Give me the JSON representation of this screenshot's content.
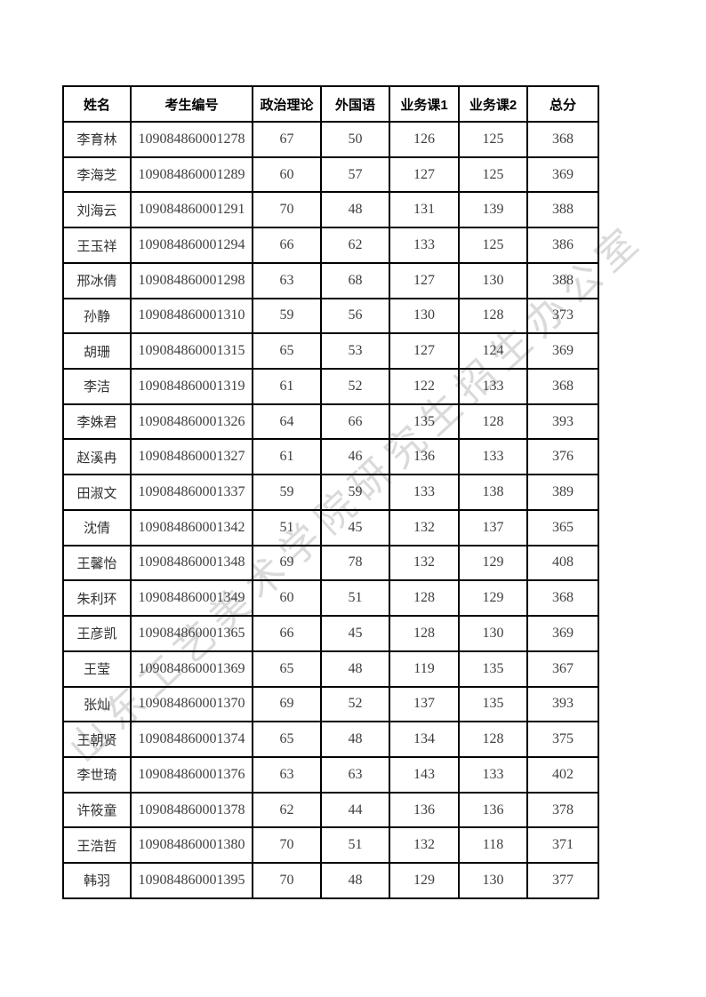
{
  "watermark": {
    "text": "山东工艺美术学院研究生招生办公室",
    "color": "#9e9e9e"
  },
  "table": {
    "headers": [
      "姓名",
      "考生编号",
      "政治理论",
      "外国语",
      "业务课1",
      "业务课2",
      "总分"
    ],
    "rows": [
      [
        "李育林",
        "109084860001278",
        "67",
        "50",
        "126",
        "125",
        "368"
      ],
      [
        "李海芝",
        "109084860001289",
        "60",
        "57",
        "127",
        "125",
        "369"
      ],
      [
        "刘海云",
        "109084860001291",
        "70",
        "48",
        "131",
        "139",
        "388"
      ],
      [
        "王玉祥",
        "109084860001294",
        "66",
        "62",
        "133",
        "125",
        "386"
      ],
      [
        "邢冰倩",
        "109084860001298",
        "63",
        "68",
        "127",
        "130",
        "388"
      ],
      [
        "孙静",
        "109084860001310",
        "59",
        "56",
        "130",
        "128",
        "373"
      ],
      [
        "胡珊",
        "109084860001315",
        "65",
        "53",
        "127",
        "124",
        "369"
      ],
      [
        "李洁",
        "109084860001319",
        "61",
        "52",
        "122",
        "133",
        "368"
      ],
      [
        "李姝君",
        "109084860001326",
        "64",
        "66",
        "135",
        "128",
        "393"
      ],
      [
        "赵溪冉",
        "109084860001327",
        "61",
        "46",
        "136",
        "133",
        "376"
      ],
      [
        "田淑文",
        "109084860001337",
        "59",
        "59",
        "133",
        "138",
        "389"
      ],
      [
        "沈倩",
        "109084860001342",
        "51",
        "45",
        "132",
        "137",
        "365"
      ],
      [
        "王馨怡",
        "109084860001348",
        "69",
        "78",
        "132",
        "129",
        "408"
      ],
      [
        "朱利环",
        "109084860001349",
        "60",
        "51",
        "128",
        "129",
        "368"
      ],
      [
        "王彦凯",
        "109084860001365",
        "66",
        "45",
        "128",
        "130",
        "369"
      ],
      [
        "王莹",
        "109084860001369",
        "65",
        "48",
        "119",
        "135",
        "367"
      ],
      [
        "张灿",
        "109084860001370",
        "69",
        "52",
        "137",
        "135",
        "393"
      ],
      [
        "王朝贤",
        "109084860001374",
        "65",
        "48",
        "134",
        "128",
        "375"
      ],
      [
        "李世琦",
        "109084860001376",
        "63",
        "63",
        "143",
        "133",
        "402"
      ],
      [
        "许筱童",
        "109084860001378",
        "62",
        "44",
        "136",
        "136",
        "378"
      ],
      [
        "王浩哲",
        "109084860001380",
        "70",
        "51",
        "132",
        "118",
        "371"
      ],
      [
        "韩羽",
        "109084860001395",
        "70",
        "48",
        "129",
        "130",
        "377"
      ]
    ]
  }
}
